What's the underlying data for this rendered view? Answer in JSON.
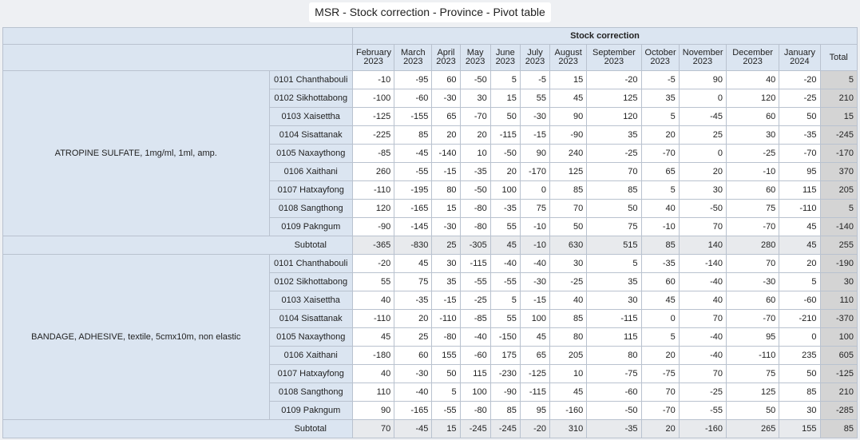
{
  "title": "MSR - Stock correction - Province - Pivot table",
  "header_label": "Stock correction",
  "months": [
    [
      "February",
      "2023"
    ],
    [
      "March",
      "2023"
    ],
    [
      "April",
      "2023"
    ],
    [
      "May",
      "2023"
    ],
    [
      "June",
      "2023"
    ],
    [
      "July",
      "2023"
    ],
    [
      "August",
      "2023"
    ],
    [
      "September",
      "2023"
    ],
    [
      "October",
      "2023"
    ],
    [
      "November",
      "2023"
    ],
    [
      "December",
      "2023"
    ],
    [
      "January",
      "2024"
    ]
  ],
  "total_label": "Total",
  "subtotal_label": "Subtotal",
  "products": [
    {
      "name": "ATROPINE SULFATE, 1mg/ml, 1ml, amp.",
      "rows": [
        {
          "district": "0101 Chanthabouli",
          "values": [
            -10,
            -95,
            60,
            -50,
            5,
            -5,
            15,
            -20,
            -5,
            90,
            40,
            -20
          ],
          "total": 5
        },
        {
          "district": "0102 Sikhottabong",
          "values": [
            -100,
            -60,
            -30,
            30,
            15,
            55,
            45,
            125,
            35,
            0,
            120,
            -25
          ],
          "total": 210
        },
        {
          "district": "0103 Xaisettha",
          "values": [
            -125,
            -155,
            65,
            -70,
            50,
            -30,
            90,
            120,
            5,
            -45,
            60,
            50
          ],
          "total": 15
        },
        {
          "district": "0104 Sisattanak",
          "values": [
            -225,
            85,
            20,
            20,
            -115,
            -15,
            -90,
            35,
            20,
            25,
            30,
            -35
          ],
          "total": -245
        },
        {
          "district": "0105 Naxaythong",
          "values": [
            -85,
            -45,
            -140,
            10,
            -50,
            90,
            240,
            -25,
            -70,
            0,
            -25,
            -70
          ],
          "total": -170
        },
        {
          "district": "0106 Xaithani",
          "values": [
            260,
            -55,
            -15,
            -35,
            20,
            -170,
            125,
            70,
            65,
            20,
            -10,
            95
          ],
          "total": 370
        },
        {
          "district": "0107 Hatxayfong",
          "values": [
            -110,
            -195,
            80,
            -50,
            100,
            0,
            85,
            85,
            5,
            30,
            60,
            115
          ],
          "total": 205
        },
        {
          "district": "0108 Sangthong",
          "values": [
            120,
            -165,
            15,
            -80,
            -35,
            75,
            70,
            50,
            40,
            -50,
            75,
            -110
          ],
          "total": 5
        },
        {
          "district": "0109 Pakngum",
          "values": [
            -90,
            -145,
            -30,
            -80,
            55,
            -10,
            50,
            75,
            -10,
            70,
            -70,
            45
          ],
          "total": -140
        }
      ],
      "subtotal": {
        "values": [
          -365,
          -830,
          25,
          -305,
          45,
          -10,
          630,
          515,
          85,
          140,
          280,
          45
        ],
        "total": 255
      }
    },
    {
      "name": "BANDAGE, ADHESIVE, textile, 5cmx10m, non elastic",
      "rows": [
        {
          "district": "0101 Chanthabouli",
          "values": [
            -20,
            45,
            30,
            -115,
            -40,
            -40,
            30,
            5,
            -35,
            -140,
            70,
            20
          ],
          "total": -190
        },
        {
          "district": "0102 Sikhottabong",
          "values": [
            55,
            75,
            35,
            -55,
            -55,
            -30,
            -25,
            35,
            60,
            -40,
            -30,
            5
          ],
          "total": 30
        },
        {
          "district": "0103 Xaisettha",
          "values": [
            40,
            -35,
            -15,
            -25,
            5,
            -15,
            40,
            30,
            45,
            40,
            60,
            -60
          ],
          "total": 110
        },
        {
          "district": "0104 Sisattanak",
          "values": [
            -110,
            20,
            -110,
            -85,
            55,
            100,
            85,
            -115,
            0,
            70,
            -70,
            -210
          ],
          "total": -370
        },
        {
          "district": "0105 Naxaythong",
          "values": [
            45,
            25,
            -80,
            -40,
            -150,
            45,
            80,
            115,
            5,
            -40,
            95,
            0
          ],
          "total": 100
        },
        {
          "district": "0106 Xaithani",
          "values": [
            -180,
            60,
            155,
            -60,
            175,
            65,
            205,
            80,
            20,
            -40,
            -110,
            235
          ],
          "total": 605
        },
        {
          "district": "0107 Hatxayfong",
          "values": [
            40,
            -30,
            50,
            115,
            -230,
            -125,
            10,
            -75,
            -75,
            70,
            75,
            50
          ],
          "total": -125
        },
        {
          "district": "0108 Sangthong",
          "values": [
            110,
            -40,
            5,
            100,
            -90,
            -115,
            45,
            -60,
            70,
            -25,
            125,
            85
          ],
          "total": 210
        },
        {
          "district": "0109 Pakngum",
          "values": [
            90,
            -165,
            -55,
            -80,
            85,
            95,
            -160,
            -50,
            -70,
            -55,
            50,
            30
          ],
          "total": -285
        }
      ],
      "subtotal": {
        "values": [
          70,
          -45,
          15,
          -245,
          -245,
          -20,
          310,
          -35,
          20,
          -160,
          265,
          155
        ],
        "total": 85
      }
    }
  ]
}
